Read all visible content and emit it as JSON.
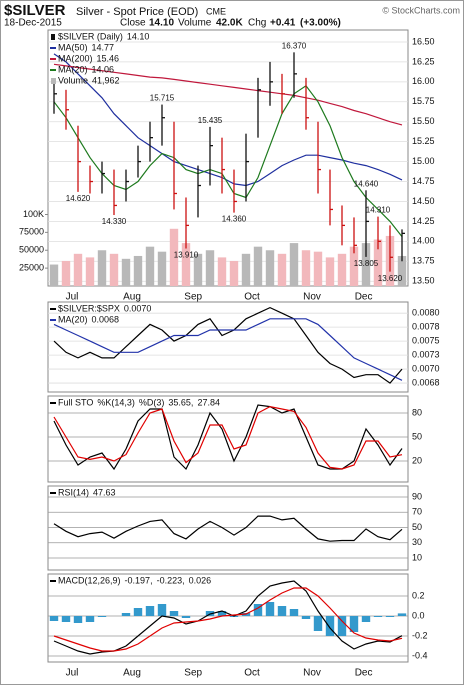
{
  "header": {
    "symbol": "$SILVER",
    "name": "Silver - Spot Price (EOD)",
    "exchange": "CME",
    "date": "18-Dec-2015",
    "close_label": "Close",
    "close": {
      "value": 14.1,
      "label": "14.10"
    },
    "volume_label": "Volume",
    "volume": {
      "value": 42000,
      "label": "42.0K"
    },
    "chg_label": "Chg",
    "chg": {
      "value": 0.41,
      "label": "+0.41"
    },
    "chg_pct": {
      "value": 3.0,
      "label": "(+3.00%)"
    },
    "credit": "© StockCharts.com"
  },
  "chart_data": [
    {
      "type": "ohlc",
      "title": "$SILVER (Daily)",
      "legend_label": "14.10",
      "grid": true,
      "xlim": [
        -0.5,
        29.5
      ],
      "xticks": [
        {
          "value": 1.5,
          "label": "Jul"
        },
        {
          "value": 6.5,
          "label": "Aug"
        },
        {
          "value": 11.6,
          "label": "Sep"
        },
        {
          "value": 16.5,
          "label": "Oct"
        },
        {
          "value": 21.5,
          "label": "Nov"
        },
        {
          "value": 25.8,
          "label": "Dec"
        }
      ],
      "ylim": [
        13.44,
        16.65
      ],
      "yticks": [
        {
          "value": 13.5,
          "label": "13.50"
        },
        13.75,
        {
          "value": 14,
          "label": "14.00"
        },
        14.25,
        {
          "value": 14.5,
          "label": "14.50"
        },
        14.75,
        {
          "value": 15,
          "label": "15.00"
        },
        15.25,
        {
          "value": 15.5,
          "label": "15.50"
        },
        15.75,
        {
          "value": 16,
          "label": "16.00"
        },
        16.25,
        {
          "value": 16.5,
          "label": "16.50"
        }
      ],
      "up_color": "#111111",
      "down_color": "#cc1111",
      "high": [
        16.0,
        15.9,
        15.45,
        14.95,
        15.0,
        14.9,
        14.9,
        15.2,
        15.5,
        15.715,
        15.5,
        14.55,
        14.95,
        15.435,
        15.3,
        14.9,
        15.35,
        16.05,
        16.25,
        16.1,
        16.37,
        16.05,
        15.5,
        14.9,
        14.45,
        14.3,
        14.64,
        14.31,
        14.2,
        14.15
      ],
      "low": [
        15.6,
        15.4,
        14.62,
        14.6,
        14.6,
        14.33,
        14.5,
        14.8,
        15.0,
        15.2,
        14.4,
        13.91,
        14.3,
        14.7,
        14.6,
        14.36,
        14.5,
        15.3,
        15.7,
        15.6,
        15.8,
        15.4,
        14.6,
        14.2,
        13.95,
        13.85,
        13.805,
        13.9,
        13.62,
        13.75
      ],
      "close": [
        15.85,
        15.65,
        15.0,
        14.75,
        14.85,
        14.45,
        14.75,
        15.0,
        15.3,
        15.55,
        14.6,
        14.2,
        14.7,
        15.2,
        14.9,
        14.5,
        15.0,
        15.9,
        16.0,
        15.85,
        16.1,
        15.55,
        14.9,
        14.4,
        14.2,
        13.95,
        14.25,
        14.0,
        13.8,
        14.1
      ],
      "overlays": [
        {
          "name": "MA(50)",
          "color": "#1f2f9f",
          "values": [
            16.35,
            16.25,
            16.1,
            15.95,
            15.8,
            15.6,
            15.45,
            15.3,
            15.2,
            15.1,
            15.0,
            14.95,
            14.9,
            14.85,
            14.8,
            14.72,
            14.7,
            14.75,
            14.85,
            14.95,
            15.02,
            15.08,
            15.08,
            15.05,
            15.02,
            14.98,
            14.95,
            14.9,
            14.84,
            14.77
          ]
        },
        {
          "name": "MA(200)",
          "color": "#c0183c",
          "values": [
            16.22,
            16.2,
            16.18,
            16.16,
            16.14,
            16.12,
            16.1,
            16.08,
            16.06,
            16.05,
            16.03,
            16.01,
            15.99,
            15.97,
            15.95,
            15.93,
            15.91,
            15.89,
            15.87,
            15.85,
            15.83,
            15.8,
            15.77,
            15.73,
            15.69,
            15.64,
            15.6,
            15.55,
            15.5,
            15.46
          ]
        },
        {
          "name": "MA(20)",
          "color": "#1e7a1e",
          "values": [
            15.75,
            15.55,
            15.3,
            15.05,
            14.85,
            14.7,
            14.65,
            14.75,
            14.95,
            15.1,
            15.05,
            14.9,
            14.85,
            14.9,
            14.85,
            14.6,
            14.55,
            14.8,
            15.2,
            15.6,
            15.85,
            15.95,
            15.75,
            15.45,
            15.05,
            14.75,
            14.55,
            14.4,
            14.25,
            14.06
          ]
        }
      ],
      "volume": {
        "name": "Volume",
        "legend_label": "41,962",
        "up_color": "#b8b8b8",
        "down_color": "#f2b8bc",
        "ylim": [
          0,
          358000
        ],
        "yticks": [
          25000,
          50000,
          75000,
          {
            "value": 100000,
            "label": "100K"
          }
        ],
        "values": [
          30000,
          35000,
          45000,
          40000,
          50000,
          45000,
          38000,
          42000,
          55000,
          48000,
          80000,
          60000,
          45000,
          50000,
          40000,
          35000,
          45000,
          55000,
          50000,
          45000,
          60000,
          50000,
          48000,
          40000,
          45000,
          55000,
          60000,
          65000,
          70000,
          41962
        ]
      },
      "annotations": [
        {
          "x": 20,
          "value": 16.37,
          "label": "16.370"
        },
        {
          "x": 9,
          "value": 15.715,
          "label": "15.715"
        },
        {
          "x": 13,
          "value": 15.435,
          "label": "15.435"
        },
        {
          "x": 26,
          "value": 14.64,
          "label": "14.640"
        },
        {
          "x": 27,
          "value": 14.31,
          "label": "14.310"
        },
        {
          "x": 2,
          "value": 14.62,
          "label": "14.620"
        },
        {
          "x": 5,
          "value": 14.33,
          "label": "14.330"
        },
        {
          "x": 15,
          "value": 14.36,
          "label": "14.360"
        },
        {
          "x": 11,
          "value": 13.91,
          "label": "13.910"
        },
        {
          "x": 26,
          "value": 13.805,
          "label": "13.805"
        },
        {
          "x": 28,
          "value": 13.62,
          "label": "13.620"
        }
      ]
    },
    {
      "type": "line",
      "legend_style": "stacked",
      "grid": true,
      "xlim": [
        -0.5,
        29.5
      ],
      "ylim": [
        0.00659,
        0.0082
      ],
      "yticks": [
        {
          "value": 0.00675,
          "label": "0.0068"
        },
        {
          "value": 0.007,
          "label": "0.0070"
        },
        {
          "value": 0.00725,
          "label": "0.0073"
        },
        0.0075,
        {
          "value": 0.00775,
          "label": "0.0078"
        },
        {
          "value": 0.008,
          "label": "0.0080"
        }
      ],
      "series": [
        {
          "name": "$SILVER:$SPX",
          "color": "#000000",
          "legend_label": "0.0070",
          "values": [
            0.0075,
            0.0073,
            0.0072,
            0.0073,
            0.0072,
            0.0072,
            0.0074,
            0.0076,
            0.0078,
            0.0077,
            0.0075,
            0.0076,
            0.0078,
            0.0079,
            0.0076,
            0.0077,
            0.0079,
            0.008,
            0.0081,
            0.008,
            0.0079,
            0.0076,
            0.0073,
            0.0071,
            0.007,
            0.00685,
            0.0069,
            0.0069,
            0.00675,
            0.007
          ]
        },
        {
          "name": "MA(20)",
          "color": "#2233aa",
          "legend_label": "0.0068",
          "values": [
            0.0078,
            0.0077,
            0.0076,
            0.0075,
            0.0074,
            0.0073,
            0.0073,
            0.0073,
            0.0074,
            0.0075,
            0.0076,
            0.0076,
            0.0076,
            0.0077,
            0.0077,
            0.0077,
            0.0077,
            0.0078,
            0.0079,
            0.0079,
            0.0079,
            0.0079,
            0.0078,
            0.0076,
            0.0074,
            0.0072,
            0.0071,
            0.007,
            0.0069,
            0.0068
          ]
        }
      ]
    },
    {
      "type": "line",
      "legend_style": "inline",
      "title": "Full STO",
      "legend_separator": ",",
      "grid": true,
      "xlim": [
        -0.5,
        29.5
      ],
      "ylim": [
        -6.25,
        101.25
      ],
      "yticks": [
        20,
        50,
        80
      ],
      "series": [
        {
          "name": "%K(14,3)",
          "color": "#000000",
          "values": [
            70,
            40,
            15,
            25,
            30,
            10,
            35,
            70,
            85,
            85,
            25,
            10,
            40,
            80,
            60,
            20,
            50,
            90,
            88,
            80,
            85,
            50,
            15,
            10,
            10,
            20,
            60,
            40,
            15,
            35.65
          ]
        },
        {
          "name": "%D(3)",
          "color": "#e00000",
          "values": [
            75,
            50,
            25,
            22,
            25,
            20,
            28,
            55,
            80,
            85,
            45,
            18,
            30,
            65,
            65,
            35,
            40,
            80,
            88,
            85,
            82,
            62,
            30,
            12,
            10,
            15,
            45,
            45,
            25,
            27.84
          ]
        }
      ]
    },
    {
      "type": "line",
      "legend_style": "inline",
      "grid": true,
      "xlim": [
        -0.5,
        29.5
      ],
      "ylim": [
        -5.7,
        104.4
      ],
      "yticks": [
        10,
        30,
        50,
        70,
        90
      ],
      "series": [
        {
          "name": "RSI(14)",
          "color": "#000000",
          "values": [
            55,
            45,
            38,
            42,
            44,
            36,
            45,
            52,
            58,
            60,
            42,
            35,
            48,
            58,
            50,
            40,
            50,
            65,
            65,
            60,
            62,
            48,
            35,
            32,
            33,
            33,
            48,
            38,
            34,
            47.63
          ]
        }
      ]
    },
    {
      "type": "macd",
      "legend_style": "inline",
      "title": "MACD(12,26,9)",
      "legend_separator": ",",
      "grid": true,
      "xlim": [
        -0.5,
        29.5
      ],
      "ylim": [
        -0.46,
        0.42
      ],
      "yticks": [
        -0.4,
        -0.2,
        {
          "value": 0,
          "label": "0.0"
        },
        0.2
      ],
      "series": [
        {
          "color": "#000000",
          "values": [
            -0.25,
            -0.3,
            -0.35,
            -0.38,
            -0.36,
            -0.35,
            -0.3,
            -0.2,
            -0.1,
            0.0,
            -0.02,
            -0.08,
            -0.05,
            0.02,
            0.05,
            0.0,
            0.05,
            0.2,
            0.3,
            0.33,
            0.35,
            0.25,
            0.05,
            -0.12,
            -0.25,
            -0.33,
            -0.28,
            -0.25,
            -0.26,
            -0.197
          ]
        },
        {
          "color": "#e00000",
          "values": [
            -0.2,
            -0.24,
            -0.28,
            -0.32,
            -0.35,
            -0.35,
            -0.33,
            -0.28,
            -0.2,
            -0.12,
            -0.07,
            -0.06,
            -0.05,
            -0.03,
            0.0,
            0.01,
            0.02,
            0.08,
            0.16,
            0.23,
            0.28,
            0.28,
            0.2,
            0.08,
            -0.05,
            -0.17,
            -0.22,
            -0.24,
            -0.25,
            -0.223
          ]
        },
        {
          "color": "#3399cc",
          "style": "histogram",
          "values": [
            -0.05,
            -0.06,
            -0.07,
            -0.06,
            -0.01,
            0.0,
            0.03,
            0.08,
            0.1,
            0.12,
            0.05,
            -0.02,
            0.0,
            0.05,
            0.05,
            -0.01,
            0.03,
            0.12,
            0.14,
            0.1,
            0.07,
            -0.03,
            -0.15,
            -0.2,
            -0.2,
            -0.16,
            -0.06,
            -0.01,
            -0.01,
            0.026
          ]
        }
      ]
    }
  ]
}
